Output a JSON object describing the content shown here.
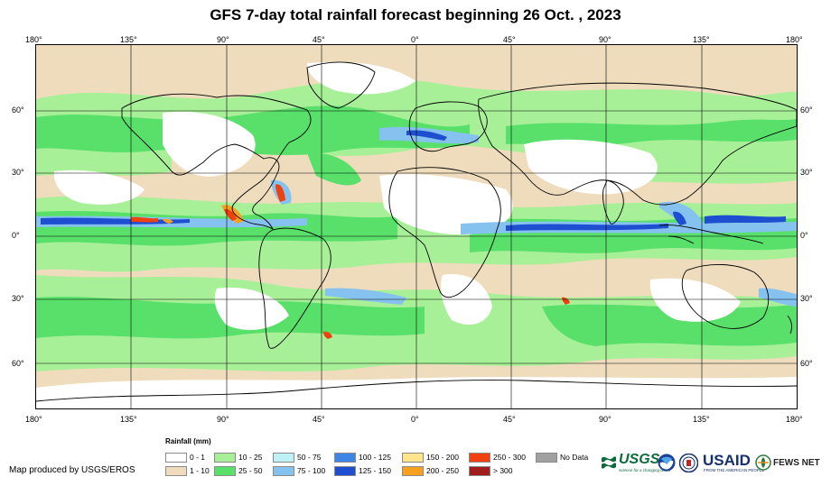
{
  "title": "GFS 7-day total rainfall forecast beginning 26 Oct. , 2023",
  "axes": {
    "lon_ticks": [
      "180°",
      "135°",
      "90°",
      "45°",
      "0°",
      "45°",
      "90°",
      "135°",
      "180°"
    ],
    "lat_ticks": [
      "60°",
      "30°",
      "0°",
      "30°",
      "60°"
    ],
    "lon_range": [
      -180,
      180
    ],
    "lat_range": [
      -83,
      90
    ]
  },
  "legend": {
    "title": "Rainfall (mm)",
    "items": [
      {
        "label": "0 - 1",
        "color": "#ffffff"
      },
      {
        "label": "1 - 10",
        "color": "#eedcbd"
      },
      {
        "label": "10 - 25",
        "color": "#a8f098"
      },
      {
        "label": "25 - 50",
        "color": "#58e06a"
      },
      {
        "label": "50 - 75",
        "color": "#bff0f6"
      },
      {
        "label": "75 - 100",
        "color": "#86c2f0"
      },
      {
        "label": "100 - 125",
        "color": "#3d86e6"
      },
      {
        "label": "125 - 150",
        "color": "#1e4fd0"
      },
      {
        "label": "150 - 200",
        "color": "#fde58c"
      },
      {
        "label": "200 - 250",
        "color": "#f5a020"
      },
      {
        "label": "250 - 300",
        "color": "#f04010"
      },
      {
        "label": "> 300",
        "color": "#a01e1e"
      },
      {
        "label": "No Data",
        "color": "#a0a0a0"
      }
    ]
  },
  "credit": "Map produced by USGS/EROS",
  "logos": {
    "usgs": "USGS",
    "usgs_tag": "science for a changing world",
    "usaid": "USAID",
    "usaid_tag": "FROM THE AMERICAN PEOPLE",
    "fews": "FEWS NET"
  },
  "colors": {
    "land_outline": "#000000",
    "grid": "#000000"
  }
}
